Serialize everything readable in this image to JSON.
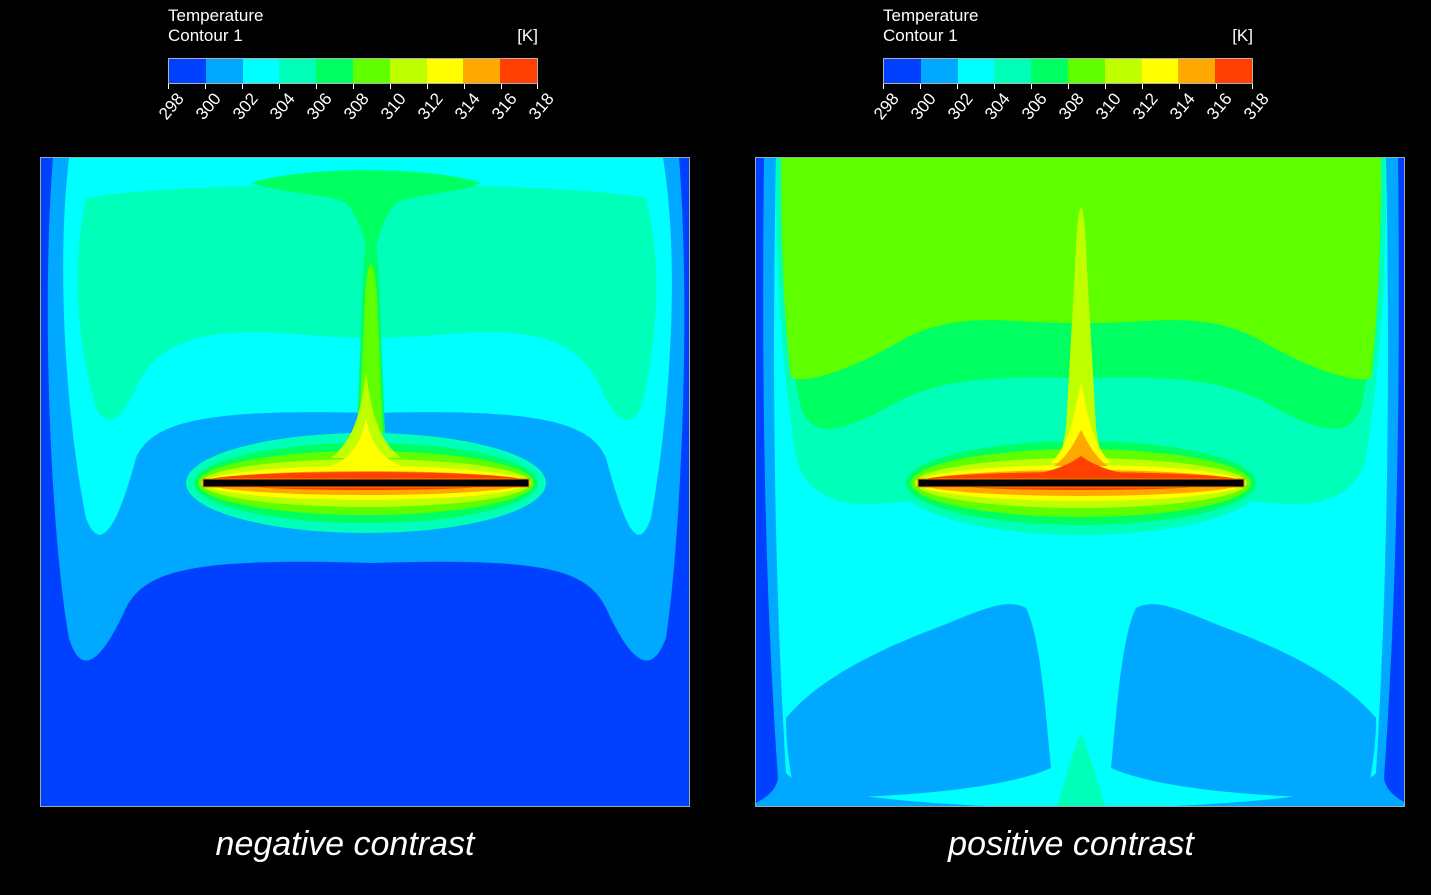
{
  "legends": [
    {
      "title": "Temperature",
      "subtitle": "Contour 1",
      "unit": "[K]",
      "ticks": [
        "298",
        "300",
        "302",
        "304",
        "306",
        "308",
        "310",
        "312",
        "314",
        "316",
        "318"
      ],
      "colors": [
        "#0040ff",
        "#00a8ff",
        "#00ffff",
        "#00ffb8",
        "#00ff60",
        "#60ff00",
        "#c0ff00",
        "#ffff00",
        "#ffa800",
        "#ff4000"
      ]
    },
    {
      "title": "Temperature",
      "subtitle": "Contour 1",
      "unit": "[K]",
      "ticks": [
        "298",
        "300",
        "302",
        "304",
        "306",
        "308",
        "310",
        "312",
        "314",
        "316",
        "318"
      ],
      "colors": [
        "#0040ff",
        "#00a8ff",
        "#00ffff",
        "#00ffb8",
        "#00ff60",
        "#60ff00",
        "#c0ff00",
        "#ffff00",
        "#ffa800",
        "#ff4000"
      ]
    }
  ],
  "panels": [
    {
      "caption": "negative contrast"
    },
    {
      "caption": "positive contrast"
    }
  ]
}
